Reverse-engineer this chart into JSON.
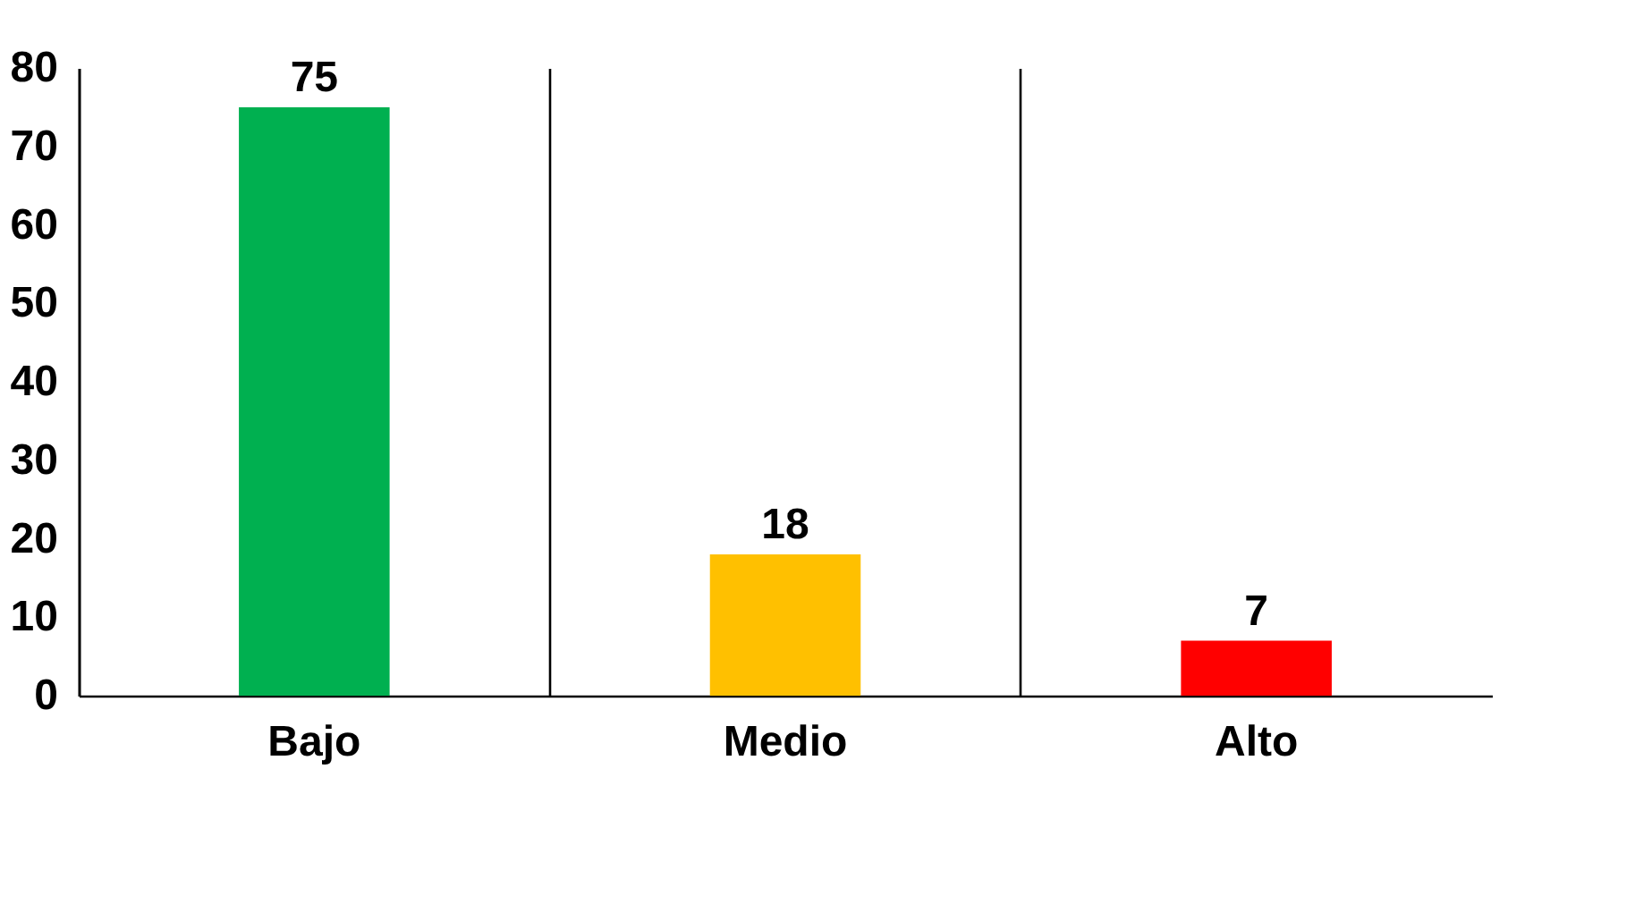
{
  "chart_data": {
    "type": "bar",
    "categories": [
      "Bajo",
      "Medio",
      "Alto"
    ],
    "values": [
      75,
      18,
      7
    ],
    "colors": [
      "#00b050",
      "#ffc000",
      "#ff0000"
    ],
    "ylim": [
      0,
      80
    ],
    "yticks": [
      0,
      10,
      20,
      30,
      40,
      50,
      60,
      70,
      80
    ],
    "grid": "x",
    "data_labels": true
  }
}
